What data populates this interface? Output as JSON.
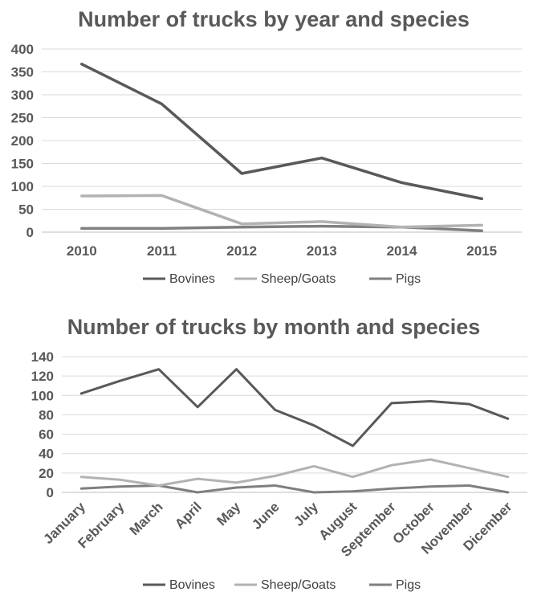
{
  "chart_data": [
    {
      "type": "line",
      "title": "Number of trucks by year and species",
      "categories": [
        "2010",
        "2011",
        "2012",
        "2013",
        "2014",
        "2015"
      ],
      "ylim": [
        0,
        400
      ],
      "yticks": [
        "0",
        "50",
        "100",
        "150",
        "200",
        "250",
        "300",
        "350",
        "400"
      ],
      "grid": true,
      "legend_position": "bottom",
      "series": [
        {
          "name": "Bovines",
          "color": "#595959",
          "values": [
            367,
            280,
            128,
            162,
            108,
            73
          ]
        },
        {
          "name": "Sheep/Goats",
          "color": "#b2b2b2",
          "values": [
            79,
            80,
            18,
            23,
            11,
            15
          ]
        },
        {
          "name": "Pigs",
          "color": "#7f7f7f",
          "values": [
            8,
            8,
            11,
            13,
            11,
            3
          ]
        }
      ]
    },
    {
      "type": "line",
      "title": "Number of trucks by month and species",
      "categories": [
        "January",
        "February",
        "March",
        "April",
        "May",
        "June",
        "July",
        "August",
        "September",
        "October",
        "November",
        "Dicember"
      ],
      "ylim": [
        0,
        140
      ],
      "yticks": [
        "0",
        "20",
        "40",
        "60",
        "80",
        "100",
        "120",
        "140"
      ],
      "grid": true,
      "legend_position": "bottom",
      "series": [
        {
          "name": "Bovines",
          "color": "#595959",
          "values": [
            102,
            115,
            127,
            88,
            127,
            85,
            69,
            48,
            92,
            94,
            91,
            76
          ]
        },
        {
          "name": "Sheep/Goats",
          "color": "#b2b2b2",
          "values": [
            16,
            13,
            7,
            14,
            10,
            17,
            27,
            16,
            28,
            34,
            25,
            16
          ]
        },
        {
          "name": "Pigs",
          "color": "#7f7f7f",
          "values": [
            4,
            6,
            7,
            0,
            5,
            7,
            0,
            1,
            4,
            6,
            7,
            0
          ]
        }
      ]
    }
  ]
}
